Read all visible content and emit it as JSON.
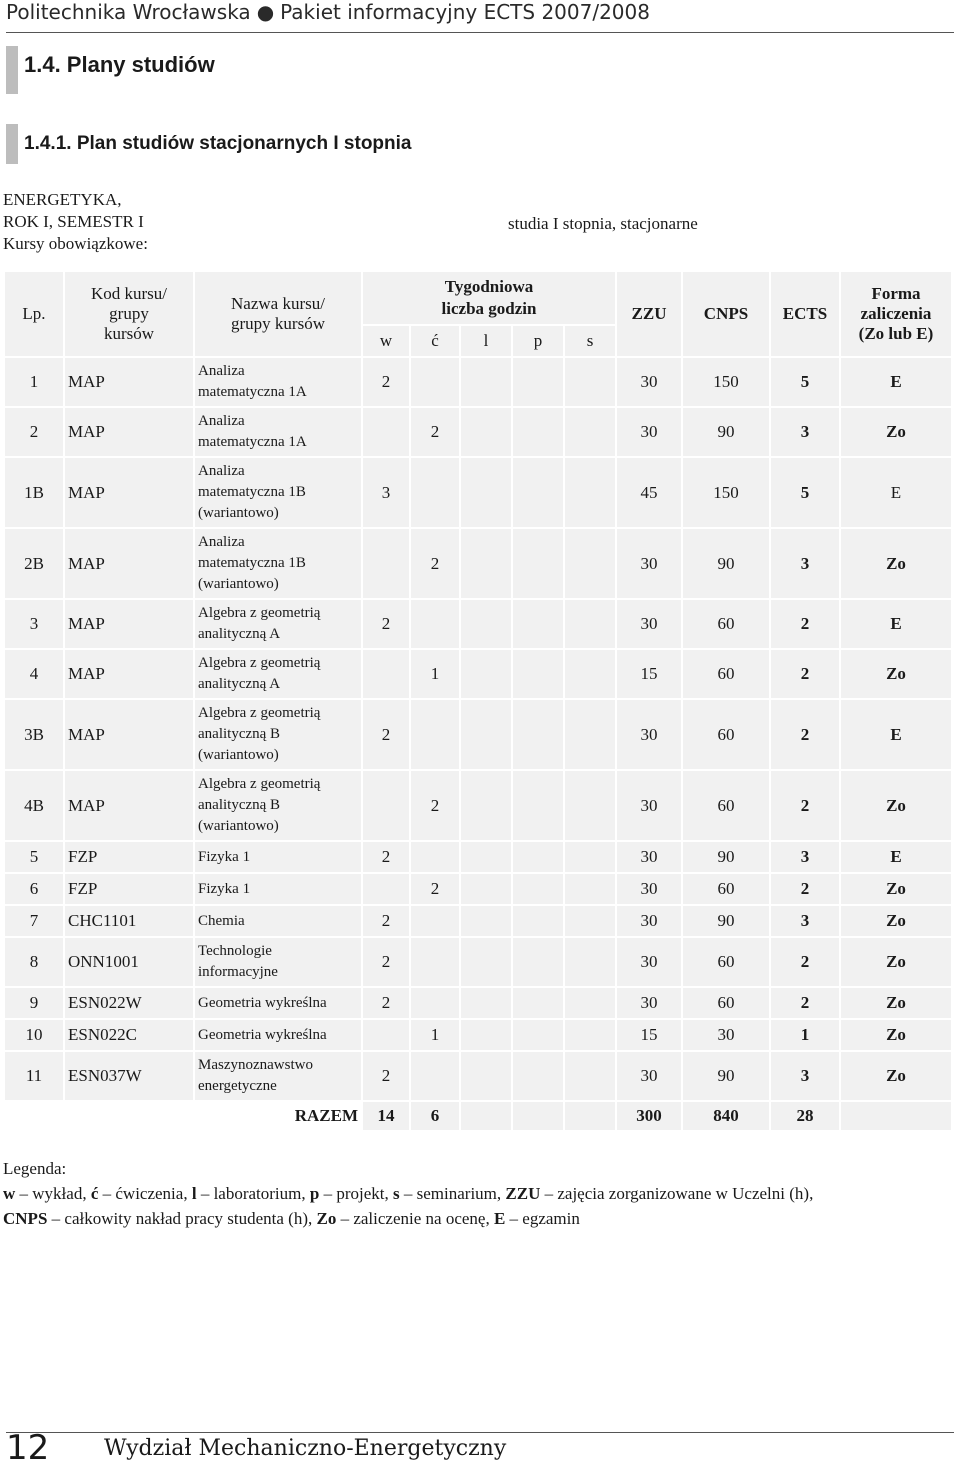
{
  "header": {
    "university": "Politechnika Wrocławska",
    "bullet": "●",
    "package": "Pakiet informacyjny ECTS 2007/2008"
  },
  "section": {
    "h1": "1.4. Plany studiów",
    "h2": "1.4.1. Plan studiów stacjonarnych I stopnia"
  },
  "meta": {
    "line1": "ENERGETYKA,",
    "line2": "ROK I, SEMESTR I",
    "line3": "Kursy obowiązkowe:",
    "studia": "studia I stopnia, stacjonarne"
  },
  "table": {
    "headers": {
      "lp": "Lp.",
      "kod": [
        "Kod kursu/",
        "grupy",
        "kursów"
      ],
      "nazwa": [
        "Nazwa kursu/",
        "grupy kursów"
      ],
      "tyg": [
        "Tygodniowa",
        "liczba godzin"
      ],
      "w": "w",
      "c": "ć",
      "l": "l",
      "p": "p",
      "s": "s",
      "zzu": "ZZU",
      "cnps": "CNPS",
      "ects": "ECTS",
      "forma": [
        "Forma",
        "zaliczenia",
        "(Zo lub E)"
      ]
    },
    "rows": [
      {
        "lp": "1",
        "kod": "MAP",
        "nazwa": [
          "Analiza",
          "matematyczna 1A"
        ],
        "w": "2",
        "c": "",
        "l": "",
        "p": "",
        "s": "",
        "zzu": "30",
        "cnps": "150",
        "ects": "5",
        "forma": "E"
      },
      {
        "lp": "2",
        "kod": "MAP",
        "nazwa": [
          "Analiza",
          "matematyczna 1A"
        ],
        "w": "",
        "c": "2",
        "l": "",
        "p": "",
        "s": "",
        "zzu": "30",
        "cnps": "90",
        "ects": "3",
        "forma": "Zo"
      },
      {
        "lp": "1B",
        "kod": "MAP",
        "nazwa": [
          "Analiza",
          "matematyczna 1B",
          "(wariantowo)"
        ],
        "w": "3",
        "c": "",
        "l": "",
        "p": "",
        "s": "",
        "zzu": "45",
        "cnps": "150",
        "ects": "5",
        "forma": "E"
      },
      {
        "lp": "2B",
        "kod": "MAP",
        "nazwa": [
          "Analiza",
          "matematyczna 1B",
          "(wariantowo)"
        ],
        "w": "",
        "c": "2",
        "l": "",
        "p": "",
        "s": "",
        "zzu": "30",
        "cnps": "90",
        "ects": "3",
        "forma": "Zo"
      },
      {
        "lp": "3",
        "kod": "MAP",
        "nazwa": [
          "Algebra z geometrią",
          "analityczną A"
        ],
        "w": "2",
        "c": "",
        "l": "",
        "p": "",
        "s": "",
        "zzu": "30",
        "cnps": "60",
        "ects": "2",
        "forma": "E"
      },
      {
        "lp": "4",
        "kod": "MAP",
        "nazwa": [
          "Algebra z geometrią",
          "analityczną A"
        ],
        "w": "",
        "c": "1",
        "l": "",
        "p": "",
        "s": "",
        "zzu": "15",
        "cnps": "60",
        "ects": "2",
        "forma": "Zo"
      },
      {
        "lp": "3B",
        "kod": "MAP",
        "nazwa": [
          "Algebra z geometrią",
          "analityczną B",
          "(wariantowo)"
        ],
        "w": "2",
        "c": "",
        "l": "",
        "p": "",
        "s": "",
        "zzu": "30",
        "cnps": "60",
        "ects": "2",
        "forma": "E"
      },
      {
        "lp": "4B",
        "kod": "MAP",
        "nazwa": [
          "Algebra z geometrią",
          "analityczną B",
          "(wariantowo)"
        ],
        "w": "",
        "c": "2",
        "l": "",
        "p": "",
        "s": "",
        "zzu": "30",
        "cnps": "60",
        "ects": "2",
        "forma": "Zo"
      },
      {
        "lp": "5",
        "kod": "FZP",
        "nazwa": [
          "Fizyka 1"
        ],
        "w": "2",
        "c": "",
        "l": "",
        "p": "",
        "s": "",
        "zzu": "30",
        "cnps": "90",
        "ects": "3",
        "forma": "E"
      },
      {
        "lp": "6",
        "kod": "FZP",
        "nazwa": [
          "Fizyka 1"
        ],
        "w": "",
        "c": "2",
        "l": "",
        "p": "",
        "s": "",
        "zzu": "30",
        "cnps": "60",
        "ects": "2",
        "forma": "Zo"
      },
      {
        "lp": "7",
        "kod": "CHC1101",
        "nazwa": [
          "Chemia"
        ],
        "w": "2",
        "c": "",
        "l": "",
        "p": "",
        "s": "",
        "zzu": "30",
        "cnps": "90",
        "ects": "3",
        "forma": "Zo"
      },
      {
        "lp": "8",
        "kod": "ONN1001",
        "nazwa": [
          "Technologie",
          "informacyjne"
        ],
        "w": "2",
        "c": "",
        "l": "",
        "p": "",
        "s": "",
        "zzu": "30",
        "cnps": "60",
        "ects": "2",
        "forma": "Zo"
      },
      {
        "lp": "9",
        "kod": "ESN022W",
        "nazwa": [
          "Geometria wykreślna"
        ],
        "w": "2",
        "c": "",
        "l": "",
        "p": "",
        "s": "",
        "zzu": "30",
        "cnps": "60",
        "ects": "2",
        "forma": "Zo"
      },
      {
        "lp": "10",
        "kod": "ESN022C",
        "nazwa": [
          "Geometria wykreślna"
        ],
        "w": "",
        "c": "1",
        "l": "",
        "p": "",
        "s": "",
        "zzu": "15",
        "cnps": "30",
        "ects": "1",
        "forma": "Zo"
      },
      {
        "lp": "11",
        "kod": "ESN037W",
        "nazwa": [
          "Maszynoznawstwo",
          "energetyczne"
        ],
        "w": "2",
        "c": "",
        "l": "",
        "p": "",
        "s": "",
        "zzu": "30",
        "cnps": "90",
        "ects": "3",
        "forma": "Zo"
      }
    ],
    "razem": {
      "label": "RAZEM",
      "w": "14",
      "c": "6",
      "zzu": "300",
      "cnps": "840",
      "ects": "28"
    }
  },
  "legend": {
    "title": "Legenda:",
    "items": [
      {
        "k": "w",
        "v": " – wykład, "
      },
      {
        "k": "ć",
        "v": " – ćwiczenia, "
      },
      {
        "k": "l",
        "v": " – laboratorium, "
      },
      {
        "k": "p",
        "v": " – projekt, "
      },
      {
        "k": "s",
        "v": " – seminarium, "
      },
      {
        "k": "ZZU",
        "v": " – zajęcia zorganizowane w Uczelni (h), "
      },
      {
        "k": "CNPS",
        "v": " – całkowity nakład pracy studenta (h), "
      },
      {
        "k": "Zo",
        "v": " – zaliczenie na ocenę, "
      },
      {
        "k": "E",
        "v": " – egzamin"
      }
    ]
  },
  "footer": {
    "page": "12",
    "faculty": "Wydział Mechaniczno-Energetyczny"
  }
}
